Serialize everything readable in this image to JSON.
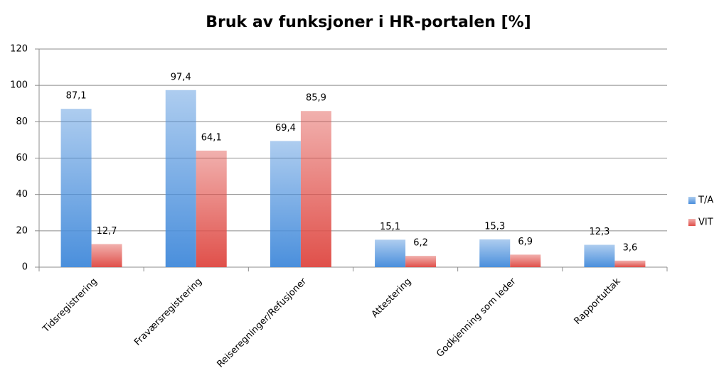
{
  "chart_data": {
    "type": "bar",
    "title": "Bruk av funksjoner i HR-portalen [%]",
    "categories": [
      "Tidsregistrering",
      "Fraværsregistrering",
      "Reiseregninger/Refusjoner",
      "Attestering",
      "Godkjenning som leder",
      "Rapportuttak"
    ],
    "series": [
      {
        "name": "T/A",
        "color": "#4a8fdc",
        "values": [
          87.1,
          97.4,
          69.4,
          15.1,
          15.3,
          12.3
        ],
        "value_labels": [
          "87,1",
          "97,4",
          "69,4",
          "15,1",
          "15,3",
          "12,3"
        ]
      },
      {
        "name": "VIT",
        "color": "#e0504a",
        "values": [
          12.7,
          64.1,
          85.9,
          6.2,
          6.9,
          3.6
        ],
        "value_labels": [
          "12,7",
          "64,1",
          "85,9",
          "6,2",
          "6,9",
          "3,6"
        ]
      }
    ],
    "ylim": [
      0,
      120
    ],
    "yticks": [
      0,
      20,
      40,
      60,
      80,
      100,
      120
    ],
    "grid": true,
    "legend": "right"
  }
}
